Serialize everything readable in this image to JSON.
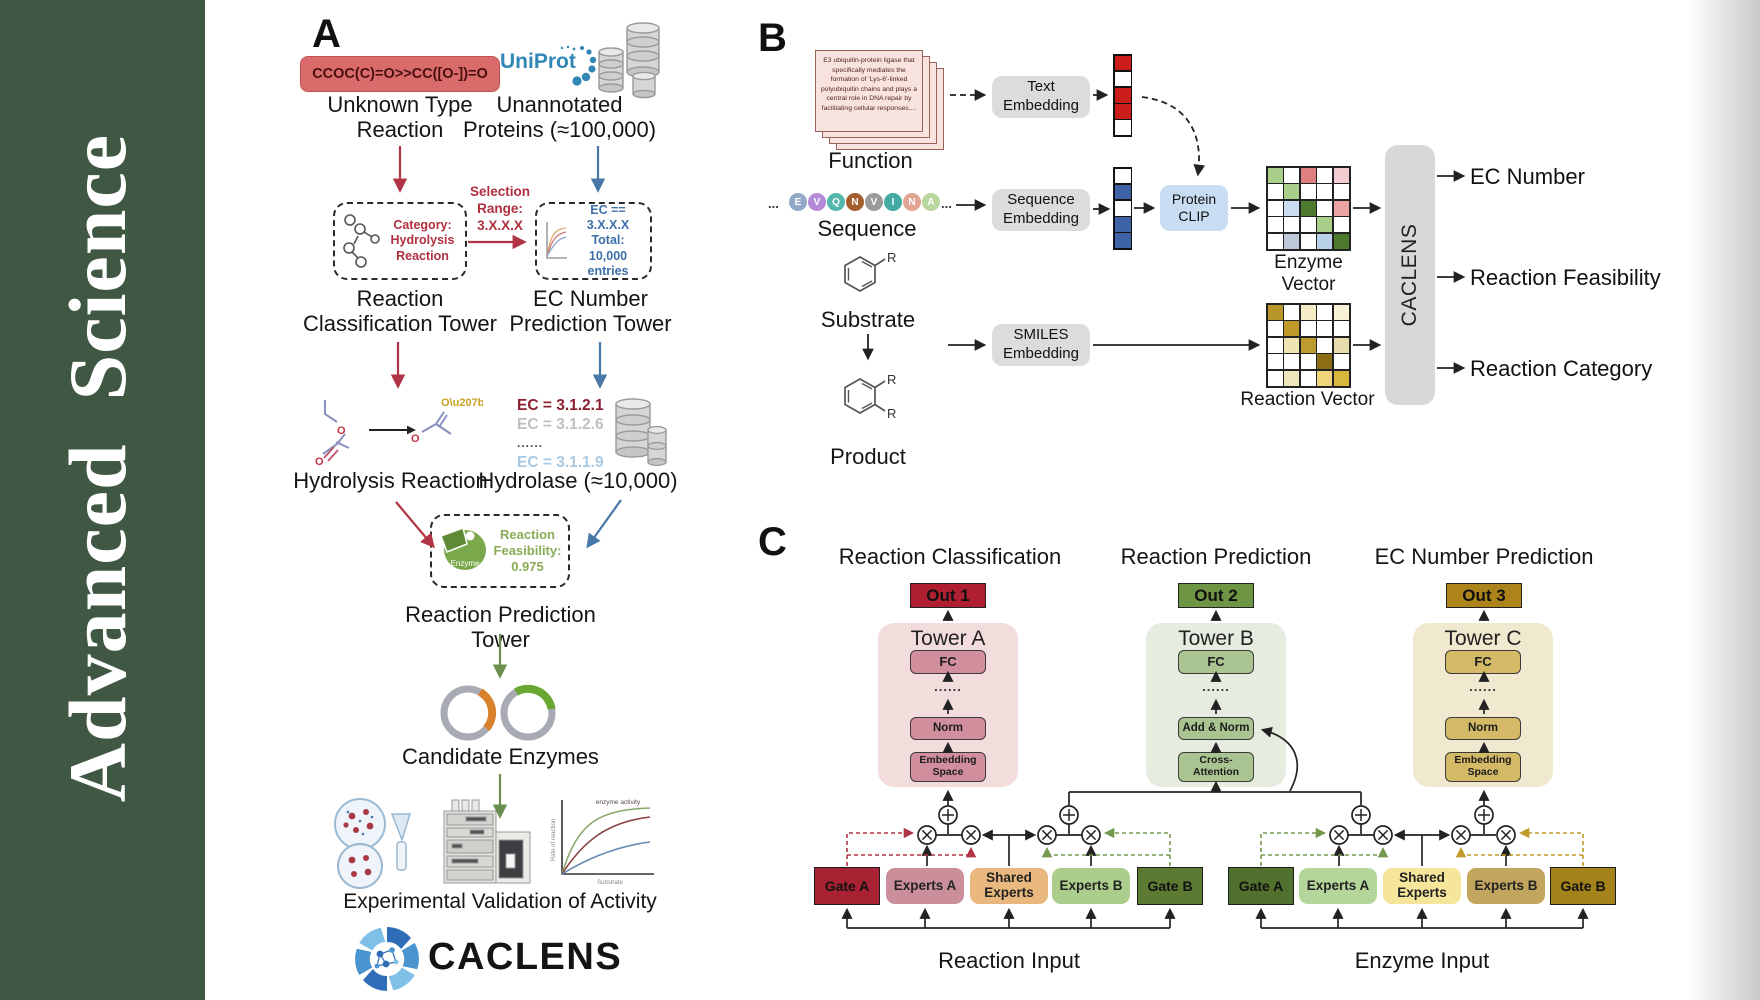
{
  "journal": {
    "name": "Advanced  Science"
  },
  "panelA": {
    "label": "A",
    "smiles": "CCOC(C)=O>>CC([O-])=O",
    "unknown_reaction_label": "Unknown Type\nReaction",
    "uniprot": "UniProt",
    "unannotated_label": "Unannotated\nProteins (≈100,000)",
    "category_box": "Category:\nHydrolysis\nReaction",
    "selection_label": "Selection\nRange:\n3.X.X.X",
    "ec_filter_box": "EC == 3.X.X.X\nTotal: 10,000\nentries",
    "classification_tower_label": "Reaction\nClassification Tower",
    "ec_tower_label": "EC Number\nPrediction Tower",
    "hydrolysis_label": "Hydrolysis Reaction",
    "hydrolase_label": "Hydrolase (≈10,000)",
    "ec_list": [
      {
        "text": "EC = 3.1.2.1",
        "color": "#8b1f2f"
      },
      {
        "text": "EC = 3.1.2.6",
        "color": "#c0bfbf"
      },
      {
        "text": "......",
        "color": "#444444"
      },
      {
        "text": "EC = 3.1.1.9",
        "color": "#a9c9e2"
      }
    ],
    "enzyme_badge": "Enzyme",
    "feasibility_label": "Reaction\nFeasibility:\n0.975",
    "prediction_tower_label": "Reaction Prediction Tower",
    "candidate_label": "Candidate Enzymes",
    "validation_label": "Experimental Validation of Activity",
    "activity_plot": {
      "annotation": "enzyme activity",
      "ylabel": "Rate of reaction",
      "xlabel": "Substrate"
    },
    "brand": "CACLENS"
  },
  "panelB": {
    "label": "B",
    "function_card": "E3 ubiquitin-protein ligase that specifically mediates the formation of 'Lys-6'-linked polyubiquitin chains and plays a central role in DNA repair by facilitating cellular responses....",
    "function_label": "Function",
    "ellipsis": "...",
    "residues": [
      {
        "letter": "E",
        "color": "#93a9c7"
      },
      {
        "letter": "V",
        "color": "#b48ad6"
      },
      {
        "letter": "Q",
        "color": "#52b8ac"
      },
      {
        "letter": "N",
        "color": "#a35f2e"
      },
      {
        "letter": "V",
        "color": "#9b9b9b"
      },
      {
        "letter": "I",
        "color": "#45aaa2"
      },
      {
        "letter": "N",
        "color": "#e2a493"
      },
      {
        "letter": "A",
        "color": "#b8d69e"
      }
    ],
    "sequence_label": "Sequence",
    "substrate_label": "Substrate",
    "product_label": "Product",
    "r_label": "R",
    "text_embedding": "Text\nEmbedding",
    "sequence_embedding": "Sequence\nEmbedding",
    "smiles_embedding": "SMILES\nEmbedding",
    "protein_clip": "Protein\nCLIP",
    "text_vector": [
      "#cc1d1d",
      "#ffffff",
      "#cc1d1d",
      "#cc1d1d",
      "#ffffff"
    ],
    "sequence_vector": [
      "#ffffff",
      "#3f64a6",
      "#ffffff",
      "#3f64a6",
      "#3f64a6"
    ],
    "enzyme_vector_label": "Enzyme Vector",
    "reaction_vector_label": "Reaction Vector",
    "enzyme_vector": [
      "#a9cf8a",
      "#ffffff",
      "#e07f7f",
      "#ffffff",
      "#f3cbd1",
      "#ffffff",
      "#a9cf8a",
      "#ffffff",
      "#ffffff",
      "#ffffff",
      "#ffffff",
      "#c9dcf0",
      "#4e7a2e",
      "#ffffff",
      "#eba3a3",
      "#ffffff",
      "#ffffff",
      "#ffffff",
      "#a9cf8a",
      "#ffffff",
      "#ffffff",
      "#bdc9d8",
      "#ffffff",
      "#bad1ea",
      "#4e7a2e"
    ],
    "reaction_vector": [
      "#b8962a",
      "#ffffff",
      "#f5ecc6",
      "#ffffff",
      "#f8f1d8",
      "#ffffff",
      "#c09a28",
      "#ffffff",
      "#ffffff",
      "#ffffff",
      "#ffffff",
      "#f0e4b2",
      "#bd9b2f",
      "#ffffff",
      "#e7dcab",
      "#ffffff",
      "#ffffff",
      "#ffffff",
      "#8a6d14",
      "#ffffff",
      "#ffffff",
      "#f0e6bc",
      "#ffffff",
      "#eed47a",
      "#d9b83f"
    ],
    "model_bar": "CACLENS",
    "outputs": [
      "EC Number",
      "Reaction Feasibility",
      "Reaction Category"
    ]
  },
  "panelC": {
    "label": "C",
    "columns": [
      {
        "title": "Reaction Classification",
        "out": "Out 1",
        "tower": "Tower A",
        "fc": "FC",
        "dots": "......",
        "mid": "Norm",
        "bottom": "Embedding\nSpace",
        "out_color": "#b01e32",
        "bg": "#f2dcdc",
        "box": "#d18e9c"
      },
      {
        "title": "Reaction Prediction",
        "out": "Out 2",
        "tower": "Tower B",
        "fc": "FC",
        "dots": "......",
        "mid": "Add & Norm",
        "bottom": "Cross-\nAttention",
        "out_color": "#6d9544",
        "bg": "#e6ecdf",
        "box": "#a9c491"
      },
      {
        "title": "EC Number Prediction",
        "out": "Out 3",
        "tower": "Tower C",
        "fc": "FC",
        "dots": "......",
        "mid": "Norm",
        "bottom": "Embedding\nSpace",
        "out_color": "#ad841c",
        "bg": "#f0e8cf",
        "box": "#d4b966"
      }
    ],
    "moe_groups": [
      {
        "gate_a": "Gate A",
        "experts_a": "Experts A",
        "shared": "Shared\nExperts",
        "experts_b": "Experts B",
        "gate_b": "Gate B",
        "input": "Reaction Input",
        "c_gate_a": "#a82234",
        "c_experts_a": "#cb8f9b",
        "c_shared": "#e9b87e",
        "c_experts_b": "#abce8c",
        "c_gate_b": "#5d7a33"
      },
      {
        "gate_a": "Gate A",
        "experts_a": "Experts A",
        "shared": "Shared\nExperts",
        "experts_b": "Experts B",
        "gate_b": "Gate B",
        "input": "Enzyme Input",
        "c_gate_a": "#52702e",
        "c_experts_a": "#b5d69a",
        "c_shared": "#f5e69c",
        "c_experts_b": "#c2a65e",
        "c_gate_b": "#a5831b"
      }
    ]
  }
}
